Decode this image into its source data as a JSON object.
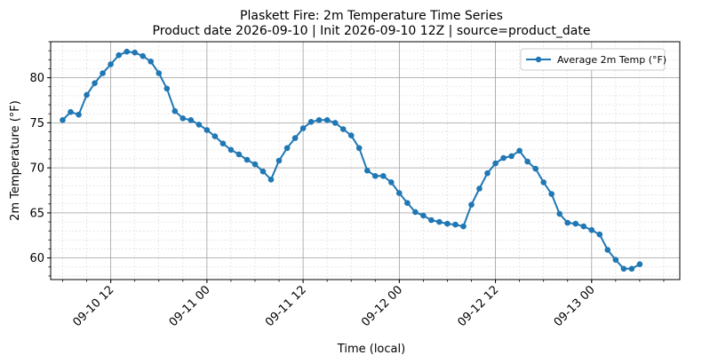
{
  "chart_data": {
    "type": "line",
    "title_line1": "Plaskett Fire: 2m Temperature Time Series",
    "title_line2": "Product date 2026-09-10 | Init 2026-09-10 12Z | source=product_date",
    "xlabel": "Time (local)",
    "ylabel": "2m Temperature (°F)",
    "xlim": [
      "2026-09-10 04:30",
      "2026-09-13 11:00"
    ],
    "ylim": [
      57.6,
      84.0
    ],
    "x_ticks": [
      {
        "t": "2026-09-10 12:00",
        "label": "09-10 12"
      },
      {
        "t": "2026-09-11 00:00",
        "label": "09-11 00"
      },
      {
        "t": "2026-09-11 12:00",
        "label": "09-11 12"
      },
      {
        "t": "2026-09-12 00:00",
        "label": "09-12 00"
      },
      {
        "t": "2026-09-12 12:00",
        "label": "09-12 12"
      },
      {
        "t": "2026-09-13 00:00",
        "label": "09-13 00"
      }
    ],
    "y_ticks": [
      60,
      65,
      70,
      75,
      80
    ],
    "grid": true,
    "minor_grid": true,
    "legend_position": "top-right",
    "series": [
      {
        "name": "Average 2m Temp (°F)",
        "color": "#1f77b4",
        "marker": "circle",
        "points": [
          [
            "2026-09-10 06:00",
            75.3
          ],
          [
            "2026-09-10 07:00",
            76.2
          ],
          [
            "2026-09-10 08:00",
            75.9
          ],
          [
            "2026-09-10 09:00",
            78.1
          ],
          [
            "2026-09-10 10:00",
            79.4
          ],
          [
            "2026-09-10 11:00",
            80.5
          ],
          [
            "2026-09-10 12:00",
            81.5
          ],
          [
            "2026-09-10 13:00",
            82.5
          ],
          [
            "2026-09-10 14:00",
            82.9
          ],
          [
            "2026-09-10 15:00",
            82.8
          ],
          [
            "2026-09-10 16:00",
            82.4
          ],
          [
            "2026-09-10 17:00",
            81.8
          ],
          [
            "2026-09-10 18:00",
            80.5
          ],
          [
            "2026-09-10 19:00",
            78.8
          ],
          [
            "2026-09-10 20:00",
            76.3
          ],
          [
            "2026-09-10 21:00",
            75.5
          ],
          [
            "2026-09-10 22:00",
            75.3
          ],
          [
            "2026-09-10 23:00",
            74.8
          ],
          [
            "2026-09-11 00:00",
            74.2
          ],
          [
            "2026-09-11 01:00",
            73.5
          ],
          [
            "2026-09-11 02:00",
            72.7
          ],
          [
            "2026-09-11 03:00",
            72.0
          ],
          [
            "2026-09-11 04:00",
            71.5
          ],
          [
            "2026-09-11 05:00",
            70.9
          ],
          [
            "2026-09-11 06:00",
            70.4
          ],
          [
            "2026-09-11 07:00",
            69.6
          ],
          [
            "2026-09-11 08:00",
            68.7
          ],
          [
            "2026-09-11 09:00",
            70.8
          ],
          [
            "2026-09-11 10:00",
            72.2
          ],
          [
            "2026-09-11 11:00",
            73.3
          ],
          [
            "2026-09-11 12:00",
            74.4
          ],
          [
            "2026-09-11 13:00",
            75.1
          ],
          [
            "2026-09-11 14:00",
            75.3
          ],
          [
            "2026-09-11 15:00",
            75.3
          ],
          [
            "2026-09-11 16:00",
            75.0
          ],
          [
            "2026-09-11 17:00",
            74.3
          ],
          [
            "2026-09-11 18:00",
            73.6
          ],
          [
            "2026-09-11 19:00",
            72.2
          ],
          [
            "2026-09-11 20:00",
            69.7
          ],
          [
            "2026-09-11 21:00",
            69.1
          ],
          [
            "2026-09-11 22:00",
            69.1
          ],
          [
            "2026-09-11 23:00",
            68.4
          ],
          [
            "2026-09-12 00:00",
            67.2
          ],
          [
            "2026-09-12 01:00",
            66.1
          ],
          [
            "2026-09-12 02:00",
            65.1
          ],
          [
            "2026-09-12 03:00",
            64.7
          ],
          [
            "2026-09-12 04:00",
            64.2
          ],
          [
            "2026-09-12 05:00",
            64.0
          ],
          [
            "2026-09-12 06:00",
            63.8
          ],
          [
            "2026-09-12 07:00",
            63.7
          ],
          [
            "2026-09-12 08:00",
            63.5
          ],
          [
            "2026-09-12 09:00",
            65.9
          ],
          [
            "2026-09-12 10:00",
            67.7
          ],
          [
            "2026-09-12 11:00",
            69.4
          ],
          [
            "2026-09-12 12:00",
            70.5
          ],
          [
            "2026-09-12 13:00",
            71.1
          ],
          [
            "2026-09-12 14:00",
            71.3
          ],
          [
            "2026-09-12 15:00",
            71.9
          ],
          [
            "2026-09-12 16:00",
            70.7
          ],
          [
            "2026-09-12 17:00",
            69.9
          ],
          [
            "2026-09-12 18:00",
            68.4
          ],
          [
            "2026-09-12 19:00",
            67.1
          ],
          [
            "2026-09-12 20:00",
            64.9
          ],
          [
            "2026-09-12 21:00",
            63.9
          ],
          [
            "2026-09-12 22:00",
            63.8
          ],
          [
            "2026-09-12 23:00",
            63.5
          ],
          [
            "2026-09-13 00:00",
            63.1
          ],
          [
            "2026-09-13 01:00",
            62.6
          ],
          [
            "2026-09-13 02:00",
            60.9
          ],
          [
            "2026-09-13 03:00",
            59.8
          ],
          [
            "2026-09-13 04:00",
            58.8
          ],
          [
            "2026-09-13 05:00",
            58.8
          ],
          [
            "2026-09-13 06:00",
            59.3
          ]
        ]
      }
    ]
  }
}
